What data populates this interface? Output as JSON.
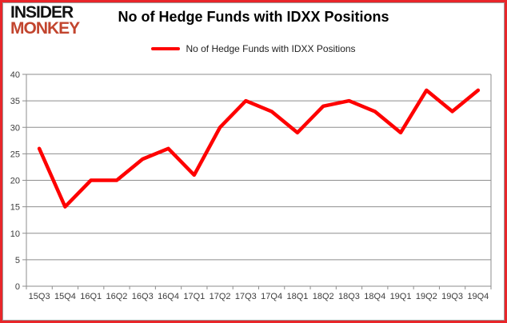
{
  "logo": {
    "line1": "INSIDER",
    "line2": "MONKEY"
  },
  "header": {
    "title": "No of Hedge Funds with IDXX Positions"
  },
  "legend": {
    "label": "No of Hedge Funds with IDXX Positions"
  },
  "colors": {
    "line": "#fe0000",
    "logo_black": "#121212",
    "logo_red": "#c2452e",
    "border_red": "#e8262a",
    "grid": "#8e8e8e",
    "axis_text": "#3d3d3d"
  },
  "chart_data": {
    "type": "line",
    "title": "No of Hedge Funds with IDXX Positions",
    "legend_entries": [
      "No of Hedge Funds with IDXX Positions"
    ],
    "legend_position": "top",
    "categories": [
      "15Q3",
      "15Q4",
      "16Q1",
      "16Q2",
      "16Q3",
      "16Q4",
      "17Q1",
      "17Q2",
      "17Q3",
      "17Q4",
      "18Q1",
      "18Q2",
      "18Q3",
      "18Q4",
      "19Q1",
      "19Q2",
      "19Q3",
      "19Q4"
    ],
    "values": [
      26,
      15,
      20,
      20,
      24,
      26,
      21,
      30,
      35,
      33,
      29,
      34,
      35,
      33,
      29,
      37,
      33,
      37
    ],
    "xlabel": "",
    "ylabel": "",
    "ylim": [
      0,
      40
    ],
    "ytick_step": 5,
    "grid": "horizontal"
  }
}
